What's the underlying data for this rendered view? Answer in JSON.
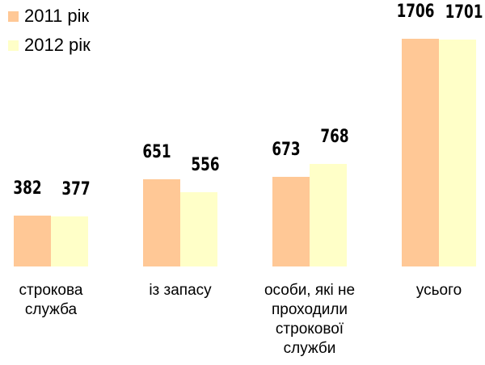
{
  "chart_data": {
    "type": "bar",
    "categories": [
      "строкова служба",
      "із запасу",
      "особи, які не проходили строкової служби",
      "усього"
    ],
    "series": [
      {
        "name": "2011 рік",
        "color": "#ffc896",
        "values": [
          382,
          651,
          673,
          1706
        ]
      },
      {
        "name": "2012 рік",
        "color": "#ffffc8",
        "values": [
          377,
          556,
          768,
          1701
        ]
      }
    ],
    "legend": "top-left"
  }
}
